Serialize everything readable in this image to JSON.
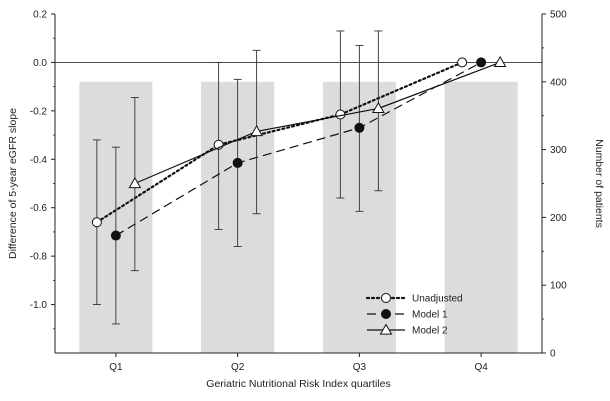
{
  "chart_data": {
    "type": "line",
    "xlabel": "Geriatric Nutritional Risk Index quartiles",
    "ylabel": "Difference of 5-year eGFR slope",
    "y2label": "Number of patients",
    "categories": [
      "Q1",
      "Q2",
      "Q3",
      "Q4"
    ],
    "ylim": [
      -1.2,
      0.2
    ],
    "y2lim": [
      0,
      500
    ],
    "yticks": [
      0.2,
      0.0,
      -0.2,
      -0.4,
      -0.6,
      -0.8,
      -1.0
    ],
    "ytick_labels": [
      "0.2",
      "0.0",
      "-0.2",
      "-0.4",
      "-0.6",
      "-0.8",
      "-1.0"
    ],
    "y2ticks": [
      500,
      400,
      300,
      200,
      100,
      0
    ],
    "y2tick_labels": [
      "500",
      "400",
      "300",
      "200",
      "100",
      "0"
    ],
    "reference_line": 0.0,
    "bars": {
      "name": "Number of patients",
      "values": [
        400,
        400,
        400,
        400
      ],
      "color": "#dcdcdc"
    },
    "series": [
      {
        "name": "Unadjusted",
        "marker": "circle-open",
        "line": "dotted",
        "offset": -0.2,
        "values": [
          -0.66,
          -0.34,
          -0.215,
          0.0
        ],
        "ci_low": [
          -1.0,
          -0.69,
          -0.56,
          null
        ],
        "ci_high": [
          -0.32,
          0.0,
          0.13,
          null
        ]
      },
      {
        "name": "Model 1",
        "marker": "circle-filled",
        "line": "dashed",
        "offset": 0.0,
        "values": [
          -0.715,
          -0.415,
          -0.27,
          0.0
        ],
        "ci_low": [
          -1.08,
          -0.76,
          -0.615,
          null
        ],
        "ci_high": [
          -0.35,
          -0.07,
          0.07,
          null
        ]
      },
      {
        "name": "Model 2",
        "marker": "triangle-open",
        "line": "solid",
        "offset": 0.2,
        "values": [
          -0.5,
          -0.285,
          -0.19,
          0.0
        ],
        "ci_low": [
          -0.86,
          -0.625,
          -0.53,
          null
        ],
        "ci_high": [
          -0.145,
          0.05,
          0.13,
          null
        ]
      }
    ],
    "legend": {
      "position": "bottom-right"
    }
  }
}
